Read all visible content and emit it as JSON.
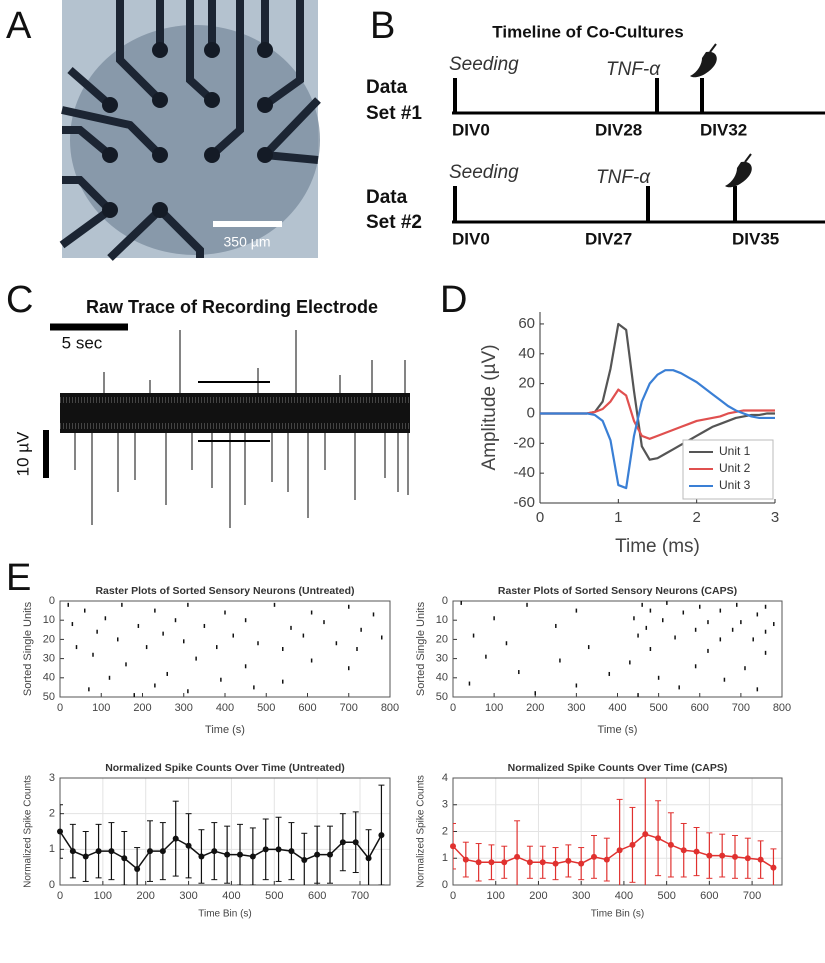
{
  "panel_labels": [
    "A",
    "B",
    "C",
    "D",
    "E"
  ],
  "panel_a": {
    "scale_bar_label": "350 µm"
  },
  "panel_b": {
    "title": "Timeline of Co-Cultures",
    "data_sets": [
      {
        "label": [
          "Data",
          "Set #1"
        ],
        "events": [
          {
            "top": "Seeding",
            "bottom": "DIV0"
          },
          {
            "top": "TNF-α",
            "bottom": "DIV28"
          },
          {
            "marker": "pepper",
            "bottom": "DIV32"
          }
        ]
      },
      {
        "label": [
          "Data",
          "Set #2"
        ],
        "events": [
          {
            "top": "Seeding",
            "bottom": "DIV0"
          },
          {
            "top": "TNF-α",
            "bottom": "DIV27"
          },
          {
            "marker": "pepper",
            "bottom": "DIV35"
          }
        ]
      }
    ]
  },
  "panel_c": {
    "title": "Raw Trace of Recording Electrode",
    "time_scale_label": "5 sec",
    "amplitude_scale_label": "10 µV"
  },
  "chart_data": [
    {
      "type": "line",
      "x_label": "Time (ms)",
      "y_label": "Amplitude (µV)",
      "x": [
        0,
        0.1,
        0.2,
        0.3,
        0.4,
        0.5,
        0.6,
        0.7,
        0.8,
        0.9,
        1.0,
        1.1,
        1.2,
        1.3,
        1.4,
        1.5,
        1.6,
        1.7,
        1.8,
        1.9,
        2.0,
        2.1,
        2.2,
        2.3,
        2.4,
        2.5,
        2.6,
        2.7,
        2.8,
        2.9,
        3.0
      ],
      "series": [
        {
          "name": "Unit 1",
          "color": "#555555",
          "values": [
            0,
            0,
            0,
            0,
            0,
            0,
            0,
            1,
            8,
            30,
            60,
            56,
            15,
            -22,
            -31,
            -30,
            -27,
            -24,
            -21,
            -18,
            -15,
            -12,
            -9,
            -7,
            -5,
            -3,
            -2,
            -1,
            -1,
            0,
            0
          ]
        },
        {
          "name": "Unit 2",
          "color": "#e0504f",
          "values": [
            0,
            0,
            0,
            0,
            0,
            0,
            0,
            1,
            3,
            8,
            16,
            12,
            -5,
            -15,
            -17,
            -15,
            -13,
            -11,
            -9,
            -7,
            -5,
            -4,
            -3,
            -2,
            0,
            1,
            2,
            2,
            2,
            2,
            2
          ]
        },
        {
          "name": "Unit 3",
          "color": "#3a7fd5",
          "values": [
            0,
            0,
            0,
            0,
            0,
            0,
            0,
            -1,
            -5,
            -18,
            -48,
            -50,
            -15,
            8,
            20,
            26,
            29,
            29,
            27,
            24,
            21,
            17,
            13,
            9,
            5,
            2,
            0,
            -2,
            -3,
            -3,
            -3
          ]
        }
      ],
      "xlim": [
        0,
        3
      ],
      "xticks": [
        0,
        1,
        2,
        3
      ],
      "ylim": [
        -60,
        68
      ],
      "yticks": [
        -60,
        -40,
        -20,
        0,
        20,
        40,
        60
      ],
      "legend": "lower right",
      "grid": false
    },
    {
      "type": "raster",
      "title": "Raster Plots of Sorted Sensory Neurons (Untreated)",
      "x_label": "Time (s)",
      "y_label": "Sorted Single Units",
      "x": [
        20,
        150,
        310,
        520,
        700,
        60,
        230,
        400,
        610,
        760,
        110,
        280,
        450,
        640,
        30,
        190,
        350,
        560,
        730,
        90,
        250,
        420,
        590,
        780,
        140,
        300,
        480,
        670,
        40,
        210,
        380,
        540,
        720,
        80,
        330,
        610,
        160,
        450,
        700,
        260,
        120,
        390,
        540,
        230,
        70,
        310,
        180,
        470
      ],
      "y": [
        2,
        2,
        2,
        2,
        3,
        5,
        5,
        6,
        6,
        7,
        9,
        10,
        10,
        11,
        12,
        13,
        13,
        14,
        15,
        16,
        17,
        18,
        18,
        19,
        20,
        21,
        22,
        22,
        24,
        24,
        24,
        25,
        25,
        28,
        30,
        31,
        33,
        34,
        35,
        38,
        40,
        41,
        42,
        44,
        46,
        47,
        49,
        45
      ],
      "color": "#111111",
      "xlim": [
        0,
        800
      ],
      "xticks": [
        0,
        100,
        200,
        300,
        400,
        500,
        600,
        700,
        800
      ],
      "ylim": [
        0,
        50
      ],
      "yticks": [
        0,
        10,
        20,
        30,
        40,
        50
      ],
      "y_inverted": true,
      "grid": false
    },
    {
      "type": "raster",
      "title": "Raster Plots of Sorted Sensory Neurons (CAPS)",
      "x_label": "Time (s)",
      "y_label": "Sorted Single Units",
      "x": [
        20,
        180,
        460,
        520,
        600,
        690,
        760,
        300,
        480,
        560,
        650,
        740,
        100,
        440,
        510,
        620,
        700,
        780,
        250,
        470,
        590,
        680,
        760,
        50,
        450,
        540,
        650,
        730,
        130,
        330,
        480,
        620,
        760,
        80,
        260,
        430,
        590,
        710,
        160,
        380,
        500,
        660,
        40,
        300,
        550,
        740,
        200,
        450
      ],
      "y": [
        1,
        2,
        2,
        1,
        3,
        2,
        3,
        5,
        5,
        6,
        5,
        7,
        9,
        9,
        10,
        11,
        11,
        12,
        13,
        14,
        15,
        15,
        16,
        18,
        18,
        19,
        20,
        20,
        22,
        24,
        25,
        26,
        27,
        29,
        31,
        32,
        34,
        35,
        37,
        38,
        40,
        41,
        43,
        44,
        45,
        46,
        48,
        49
      ],
      "color": "#111111",
      "xlim": [
        0,
        800
      ],
      "xticks": [
        0,
        100,
        200,
        300,
        400,
        500,
        600,
        700,
        800
      ],
      "ylim": [
        0,
        50
      ],
      "yticks": [
        0,
        10,
        20,
        30,
        40,
        50
      ],
      "y_inverted": true,
      "grid": false
    },
    {
      "type": "errorbar",
      "title": "Normalized Spike Counts Over Time (Untreated)",
      "x_label": "Time Bin (s)",
      "y_label": "Normalized Spike Counts",
      "x": [
        0,
        30,
        60,
        90,
        120,
        150,
        180,
        210,
        240,
        270,
        300,
        330,
        360,
        390,
        420,
        450,
        480,
        510,
        540,
        570,
        600,
        630,
        660,
        690,
        720,
        750
      ],
      "values": [
        1.5,
        0.95,
        0.8,
        0.95,
        0.95,
        0.75,
        0.45,
        0.95,
        0.95,
        1.3,
        1.1,
        0.8,
        0.95,
        0.85,
        0.85,
        0.8,
        1.0,
        1.0,
        0.95,
        0.7,
        0.85,
        0.85,
        1.2,
        1.2,
        0.75,
        1.4
      ],
      "errors": [
        0.75,
        0.75,
        0.7,
        0.75,
        0.8,
        0.75,
        0.6,
        0.85,
        0.8,
        1.05,
        0.9,
        0.75,
        0.8,
        0.8,
        0.85,
        0.8,
        0.85,
        0.9,
        0.8,
        0.75,
        0.8,
        0.8,
        0.8,
        0.85,
        0.8,
        1.4
      ],
      "color": "#111111",
      "xlim": [
        0,
        770
      ],
      "xticks": [
        0,
        100,
        200,
        300,
        400,
        500,
        600,
        700
      ],
      "ylim": [
        0,
        3
      ],
      "yticks": [
        0,
        1,
        2,
        3
      ],
      "grid": true
    },
    {
      "type": "errorbar",
      "title": "Normalized Spike Counts Over Time (CAPS)",
      "x_label": "Time Bin (s)",
      "y_label": "Normalized Spike Counts",
      "x": [
        0,
        30,
        60,
        90,
        120,
        150,
        180,
        210,
        240,
        270,
        300,
        330,
        360,
        390,
        420,
        450,
        480,
        510,
        540,
        570,
        600,
        630,
        660,
        690,
        720,
        750
      ],
      "values": [
        1.45,
        0.95,
        0.85,
        0.85,
        0.85,
        1.05,
        0.85,
        0.85,
        0.8,
        0.9,
        0.8,
        1.05,
        0.95,
        1.3,
        1.5,
        1.9,
        1.75,
        1.5,
        1.3,
        1.25,
        1.1,
        1.1,
        1.05,
        1.0,
        0.95,
        0.65
      ],
      "errors": [
        0.85,
        0.65,
        0.7,
        0.65,
        0.6,
        1.35,
        0.6,
        0.6,
        0.6,
        0.6,
        0.6,
        0.8,
        0.8,
        1.9,
        1.4,
        2.2,
        1.4,
        1.2,
        1.0,
        0.9,
        0.85,
        0.8,
        0.8,
        0.75,
        0.7,
        0.7
      ],
      "color": "#e0312f",
      "xlim": [
        0,
        770
      ],
      "xticks": [
        0,
        100,
        200,
        300,
        400,
        500,
        600,
        700
      ],
      "ylim": [
        0,
        4
      ],
      "yticks": [
        0,
        1,
        2,
        3,
        4
      ],
      "grid": true
    }
  ]
}
